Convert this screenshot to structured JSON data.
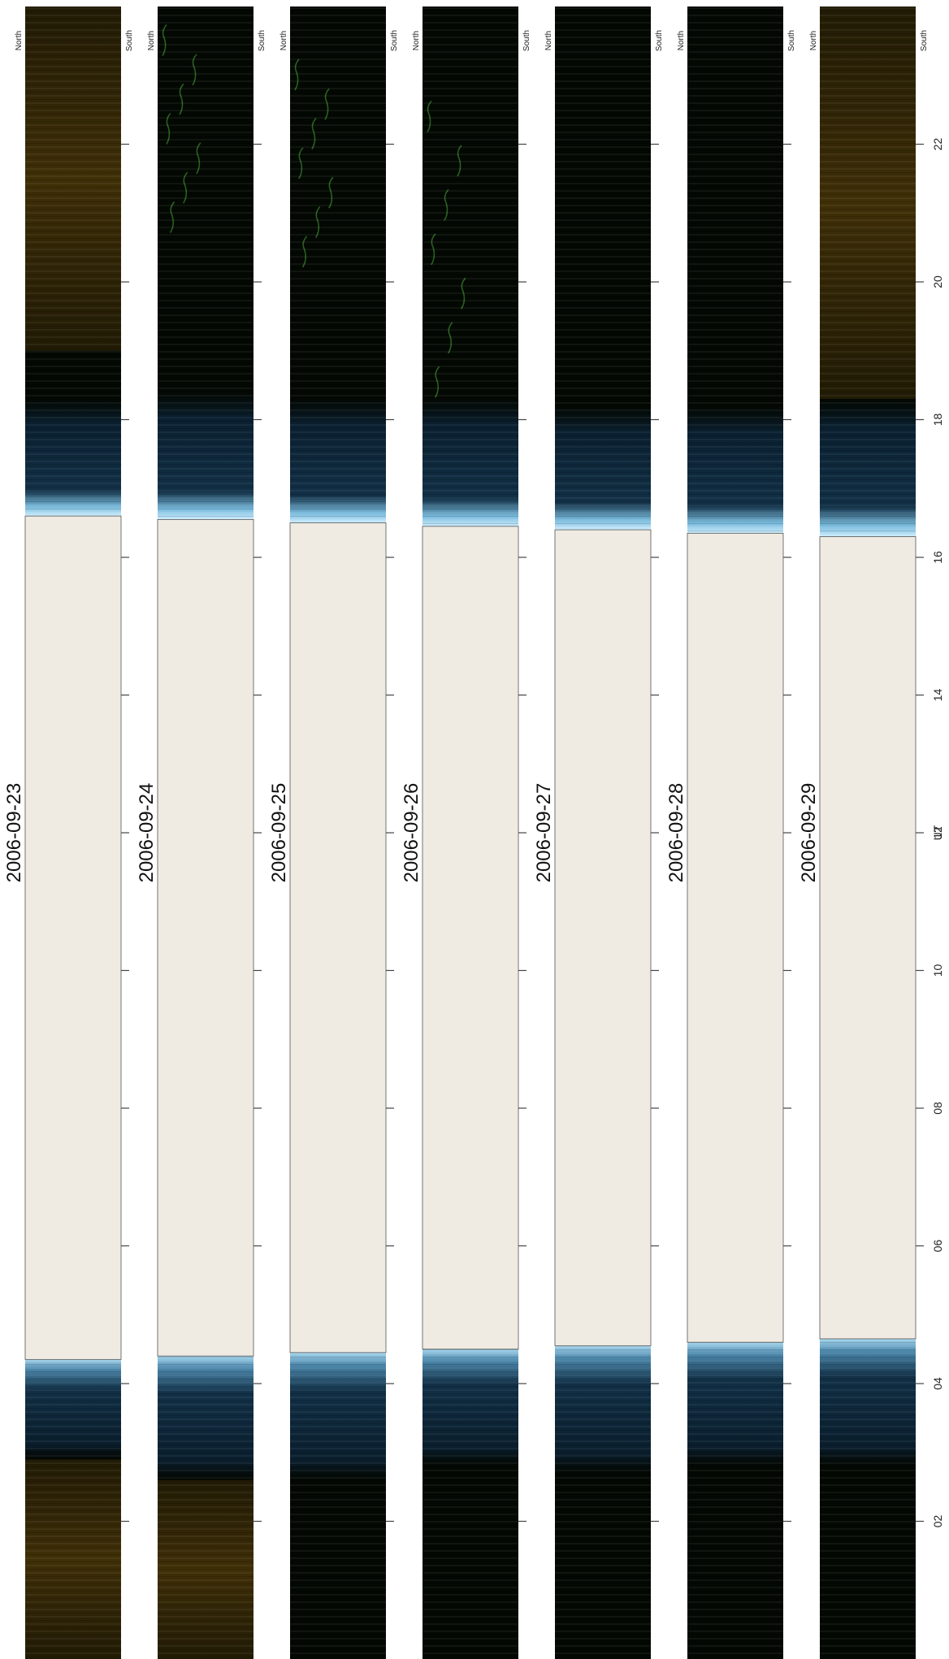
{
  "chart_data": {
    "type": "heatmap",
    "xlabel": "UT",
    "axis_orientation": "UT runs top-to-bottom from 24 to 00; latitude runs across each strip from North to South",
    "north_label": "North",
    "south_label": "South",
    "ut_range": [
      0,
      24
    ],
    "ut_ticks": [
      "02",
      "04",
      "06",
      "08",
      "10",
      "12",
      "14",
      "16",
      "18",
      "20",
      "22"
    ],
    "ut_tick_values": [
      2,
      4,
      6,
      8,
      10,
      12,
      14,
      16,
      18,
      20,
      22
    ],
    "grid": false,
    "colors": {
      "night": "#030803",
      "daylight": "#efebe2",
      "twilight_blue": "#12324a",
      "twilight_glow": "#cfeeff",
      "aurora_green": "#3a8a2a",
      "amber_cloud": "#3a2a06"
    },
    "days": [
      {
        "date": "2006-09-23",
        "daylight_ut": [
          4.35,
          16.6
        ],
        "morning_twilight_ut": [
          2.9,
          4.35
        ],
        "evening_twilight_ut": [
          16.6,
          18.3
        ],
        "amber_ut": [
          [
            0.0,
            2.9
          ],
          [
            19.0,
            24.0
          ]
        ],
        "aurora_ut": []
      },
      {
        "date": "2006-09-24",
        "daylight_ut": [
          4.4,
          16.55
        ],
        "morning_twilight_ut": [
          2.6,
          4.4
        ],
        "evening_twilight_ut": [
          16.55,
          18.4
        ],
        "amber_ut": [
          [
            0.0,
            2.6
          ]
        ],
        "aurora_ut": [
          [
            20.5,
            23.5
          ]
        ]
      },
      {
        "date": "2006-09-25",
        "daylight_ut": [
          4.45,
          16.5
        ],
        "morning_twilight_ut": [
          2.6,
          4.45
        ],
        "evening_twilight_ut": [
          16.5,
          18.3
        ],
        "amber_ut": [],
        "aurora_ut": [
          [
            20.0,
            23.0
          ]
        ]
      },
      {
        "date": "2006-09-26",
        "daylight_ut": [
          4.5,
          16.45
        ],
        "morning_twilight_ut": [
          2.8,
          4.5
        ],
        "evening_twilight_ut": [
          16.45,
          18.3
        ],
        "amber_ut": [],
        "aurora_ut": [
          [
            18.0,
            22.5
          ]
        ]
      },
      {
        "date": "2006-09-27",
        "daylight_ut": [
          4.55,
          16.4
        ],
        "morning_twilight_ut": [
          2.7,
          4.55
        ],
        "evening_twilight_ut": [
          16.4,
          18.2
        ],
        "amber_ut": [],
        "aurora_ut": []
      },
      {
        "date": "2006-09-28",
        "daylight_ut": [
          4.6,
          16.35
        ],
        "morning_twilight_ut": [
          2.8,
          4.6
        ],
        "evening_twilight_ut": [
          16.35,
          18.2
        ],
        "amber_ut": [],
        "aurora_ut": []
      },
      {
        "date": "2006-09-29",
        "daylight_ut": [
          4.65,
          16.3
        ],
        "morning_twilight_ut": [
          2.8,
          4.65
        ],
        "evening_twilight_ut": [
          16.3,
          18.3
        ],
        "amber_ut": [
          [
            18.3,
            24.0
          ]
        ],
        "aurora_ut": []
      }
    ]
  }
}
